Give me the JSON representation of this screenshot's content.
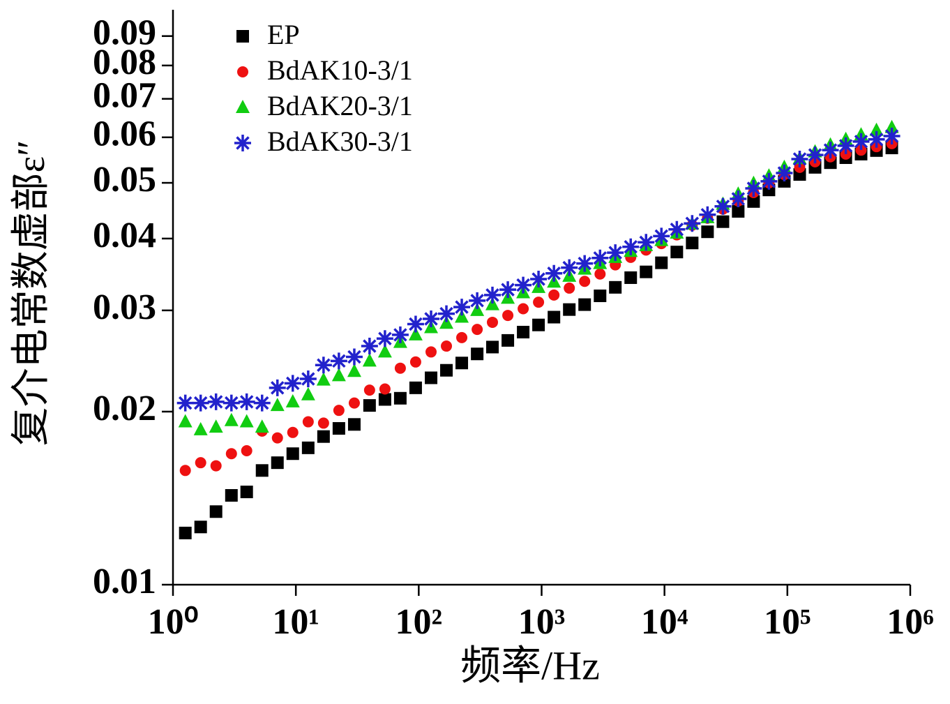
{
  "chart_data": {
    "type": "scatter",
    "xlabel": "频率/Hz",
    "ylabel": "复介电常数虚部ε″",
    "xscale": "log",
    "yscale": "log",
    "xlim": [
      1,
      1000000
    ],
    "ylim": [
      0.01,
      0.1
    ],
    "xticks": [
      {
        "value": 1,
        "label": "10⁰"
      },
      {
        "value": 10,
        "label": "10¹"
      },
      {
        "value": 100,
        "label": "10²"
      },
      {
        "value": 1000,
        "label": "10³"
      },
      {
        "value": 10000,
        "label": "10⁴"
      },
      {
        "value": 100000,
        "label": "10⁵"
      },
      {
        "value": 1000000,
        "label": "10⁶"
      }
    ],
    "yticks": [
      0.01,
      0.02,
      0.03,
      0.04,
      0.05,
      0.06,
      0.07,
      0.08,
      0.09
    ],
    "legend": "upper left",
    "x": [
      1.26,
      1.68,
      2.24,
      2.99,
      3.98,
      5.31,
      7.08,
      9.44,
      12.6,
      16.8,
      22.4,
      29.9,
      39.8,
      53.1,
      70.8,
      94.4,
      126,
      168,
      224,
      299,
      398,
      531,
      708,
      944,
      1260,
      1680,
      2240,
      2990,
      3980,
      5310,
      7080,
      9440,
      12600,
      16800,
      22400,
      29900,
      39800,
      53100,
      70800,
      94400,
      126000,
      168000,
      224000,
      299000,
      398000,
      531000,
      708000
    ],
    "series": [
      {
        "name": "EP",
        "color": "#000000",
        "marker": "square",
        "values": [
          0.0123,
          0.0126,
          0.0134,
          0.0143,
          0.0145,
          0.0158,
          0.0163,
          0.0169,
          0.0173,
          0.0181,
          0.0187,
          0.019,
          0.0205,
          0.021,
          0.0211,
          0.022,
          0.0229,
          0.0236,
          0.0243,
          0.0252,
          0.0259,
          0.0266,
          0.0275,
          0.0283,
          0.0292,
          0.0301,
          0.0307,
          0.0318,
          0.0329,
          0.0342,
          0.035,
          0.0363,
          0.0379,
          0.0393,
          0.0411,
          0.0428,
          0.0446,
          0.0464,
          0.0486,
          0.0503,
          0.0517,
          0.0532,
          0.0542,
          0.0553,
          0.0561,
          0.0569,
          0.0575
        ]
      },
      {
        "name": "BdAK10-3/1",
        "color": "#ee1111",
        "marker": "circle",
        "values": [
          0.0158,
          0.0163,
          0.0161,
          0.0169,
          0.0171,
          0.0185,
          0.018,
          0.0184,
          0.0192,
          0.0191,
          0.0201,
          0.0207,
          0.0218,
          0.0219,
          0.0238,
          0.0244,
          0.0254,
          0.026,
          0.0269,
          0.0278,
          0.0286,
          0.0294,
          0.0302,
          0.031,
          0.0319,
          0.0328,
          0.0337,
          0.0347,
          0.036,
          0.0371,
          0.0382,
          0.0392,
          0.0406,
          0.0422,
          0.0434,
          0.045,
          0.0465,
          0.0481,
          0.05,
          0.0517,
          0.0532,
          0.0544,
          0.0555,
          0.0561,
          0.057,
          0.0578,
          0.0585
        ]
      },
      {
        "name": "BdAK20-3/1",
        "color": "#11cc11",
        "marker": "triangle",
        "values": [
          0.0192,
          0.0186,
          0.0188,
          0.0193,
          0.0192,
          0.0188,
          0.0205,
          0.0208,
          0.0214,
          0.0227,
          0.0231,
          0.0235,
          0.0245,
          0.0254,
          0.0264,
          0.0272,
          0.028,
          0.0285,
          0.0292,
          0.03,
          0.0307,
          0.0315,
          0.0322,
          0.0329,
          0.0336,
          0.0344,
          0.0354,
          0.0362,
          0.0371,
          0.038,
          0.0389,
          0.0397,
          0.0409,
          0.0424,
          0.0435,
          0.0459,
          0.0478,
          0.0499,
          0.0514,
          0.0532,
          0.0551,
          0.0566,
          0.0582,
          0.0595,
          0.0606,
          0.0617,
          0.0624
        ]
      },
      {
        "name": "BdAK30-3/1",
        "color": "#2222cc",
        "marker": "asterisk",
        "values": [
          0.0207,
          0.0207,
          0.0208,
          0.0207,
          0.0208,
          0.0207,
          0.022,
          0.0224,
          0.0228,
          0.0241,
          0.0245,
          0.0249,
          0.026,
          0.0268,
          0.0272,
          0.0284,
          0.029,
          0.0296,
          0.0304,
          0.0312,
          0.0319,
          0.0326,
          0.0332,
          0.034,
          0.0348,
          0.0356,
          0.0362,
          0.037,
          0.0378,
          0.0387,
          0.0394,
          0.0404,
          0.0415,
          0.0425,
          0.044,
          0.0455,
          0.0469,
          0.0489,
          0.0503,
          0.052,
          0.055,
          0.0559,
          0.057,
          0.058,
          0.059,
          0.0595,
          0.0603
        ]
      }
    ]
  }
}
